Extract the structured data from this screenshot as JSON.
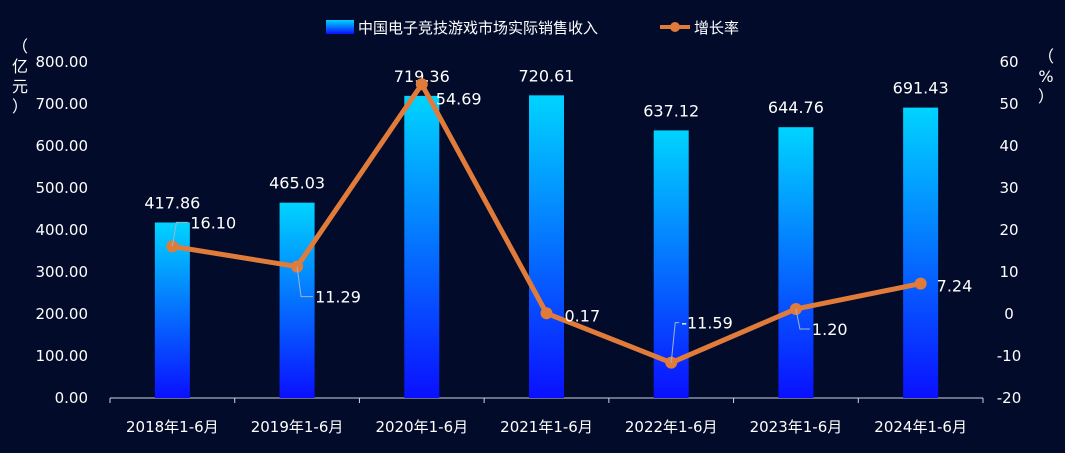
{
  "chart_data": {
    "type": "bar",
    "categories": [
      "2018年1-6月",
      "2019年1-6月",
      "2020年1-6月",
      "2021年1-6月",
      "2022年1-6月",
      "2023年1-6月",
      "2024年1-6月"
    ],
    "series": [
      {
        "name": "中国电子竞技游戏市场实际销售收入",
        "type": "bar",
        "axis": "left",
        "values": [
          417.86,
          465.03,
          719.36,
          720.61,
          637.12,
          644.76,
          691.43
        ],
        "labels": [
          "417.86",
          "465.03",
          "719.36",
          "720.61",
          "637.12",
          "644.76",
          "691.43"
        ]
      },
      {
        "name": "增长率",
        "type": "line",
        "axis": "right",
        "values": [
          16.1,
          11.29,
          54.69,
          0.17,
          -11.59,
          1.2,
          7.24
        ],
        "labels": [
          "16.10",
          "11.29",
          "54.69",
          "0.17",
          "-11.59",
          "1.20",
          "7.24"
        ]
      }
    ],
    "y_left": {
      "label": "（亿元）",
      "ylim": [
        0,
        800
      ],
      "ticks": [
        "0.00",
        "100.00",
        "200.00",
        "300.00",
        "400.00",
        "500.00",
        "600.00",
        "700.00",
        "800.00"
      ]
    },
    "y_right": {
      "label": "（%）",
      "ylim": [
        -20,
        60
      ],
      "ticks": [
        "-20",
        "-10",
        "0",
        "10",
        "20",
        "30",
        "40",
        "50",
        "60"
      ]
    },
    "legend_position": "top-center",
    "grid": false,
    "colors": {
      "background": "#020b2a",
      "bar_top": "#00d4ff",
      "bar_bottom": "#0a10ff",
      "line": "#e07b3a",
      "text": "#ffffff",
      "axis": "#cfd6e6"
    }
  }
}
